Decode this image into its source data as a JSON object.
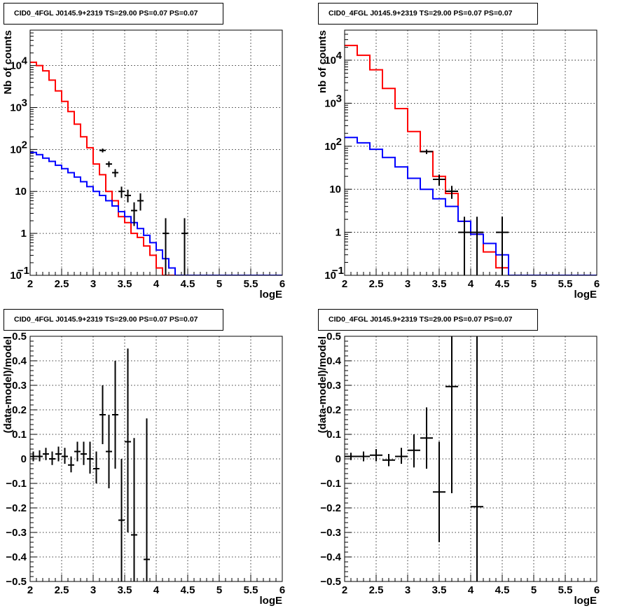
{
  "chart_data": [
    {
      "type": "line",
      "title": "CID0_4FGL J0145.9+2319 TS=29.00 PS=0.07 PS=0.07",
      "xlabel": "logE",
      "ylabel": "Nb of counts",
      "xlim": [
        2,
        6
      ],
      "ylim": [
        0.1,
        70000
      ],
      "yscale": "log",
      "grid": true,
      "x_ticks": [
        "2",
        "2.5",
        "3",
        "3.5",
        "4",
        "4.5",
        "5",
        "5.5",
        "6"
      ],
      "y_ticks": [
        {
          "v": 0.1,
          "label": "10",
          "sup": "−1"
        },
        {
          "v": 1,
          "label": "1",
          "sup": ""
        },
        {
          "v": 10,
          "label": "10",
          "sup": ""
        },
        {
          "v": 100,
          "label": "10",
          "sup": "2"
        },
        {
          "v": 1000,
          "label": "10",
          "sup": "3"
        },
        {
          "v": 10000,
          "label": "10",
          "sup": "4"
        }
      ],
      "series": [
        {
          "color": "#ff0000",
          "style": "step",
          "x0": 2.0,
          "bin": 0.1,
          "values": [
            12000,
            10000,
            7500,
            4500,
            2500,
            1400,
            800,
            400,
            200,
            110,
            45,
            25,
            10,
            6,
            2.5,
            1.8,
            1.0,
            0.8,
            0.5,
            0.3,
            0.15,
            0.1,
            0.1,
            0.1,
            0.1,
            0.1,
            0.1,
            0.1,
            0.1,
            0.1,
            0.1,
            0.1,
            0.1,
            0.1,
            0.1,
            0.1,
            0.1,
            0.1,
            0.1,
            0.1
          ]
        },
        {
          "color": "#0000ff",
          "style": "step",
          "x0": 2.0,
          "bin": 0.1,
          "values": [
            85,
            75,
            62,
            52,
            42,
            35,
            28,
            22,
            17,
            13,
            10,
            8,
            6,
            4.5,
            3.3,
            2.5,
            1.8,
            1.3,
            0.9,
            0.6,
            0.4,
            0.25,
            0.15,
            0.1,
            0.1,
            0.1,
            0.1,
            0.1,
            0.1,
            0.1,
            0.1,
            0.1,
            0.1,
            0.1,
            0.1,
            0.1,
            0.1,
            0.1,
            0.1,
            0.1
          ]
        },
        {
          "color": "#000000",
          "style": "errorbar",
          "xerr": 0.05,
          "points": [
            {
              "x": 3.15,
              "y": 95,
              "lo": 85,
              "hi": 105
            },
            {
              "x": 3.25,
              "y": 45,
              "lo": 38,
              "hi": 52
            },
            {
              "x": 3.35,
              "y": 28,
              "lo": 22,
              "hi": 34
            },
            {
              "x": 3.45,
              "y": 10,
              "lo": 7,
              "hi": 13
            },
            {
              "x": 3.55,
              "y": 8,
              "lo": 5.5,
              "hi": 11
            },
            {
              "x": 3.65,
              "y": 3.5,
              "lo": 1.5,
              "hi": 5.5
            },
            {
              "x": 3.75,
              "y": 6,
              "lo": 3.5,
              "hi": 9
            },
            {
              "x": 4.15,
              "y": 1,
              "lo": 0.1,
              "hi": 2.3
            },
            {
              "x": 4.45,
              "y": 1,
              "lo": 0.1,
              "hi": 2.3
            }
          ]
        }
      ]
    },
    {
      "type": "line",
      "title": "CID0_4FGL J0145.9+2319 TS=29.00 PS=0.07 PS=0.07",
      "xlabel": "logE",
      "ylabel": "nb of counts",
      "xlim": [
        2,
        6
      ],
      "ylim": [
        0.1,
        50000
      ],
      "yscale": "log",
      "grid": true,
      "x_ticks": [
        "2",
        "2.5",
        "3",
        "3.5",
        "4",
        "4.5",
        "5",
        "5.5",
        "6"
      ],
      "y_ticks": [
        {
          "v": 0.1,
          "label": "10",
          "sup": "−1"
        },
        {
          "v": 1,
          "label": "1",
          "sup": ""
        },
        {
          "v": 10,
          "label": "10",
          "sup": ""
        },
        {
          "v": 100,
          "label": "10",
          "sup": "2"
        },
        {
          "v": 1000,
          "label": "10",
          "sup": "3"
        },
        {
          "v": 10000,
          "label": "10",
          "sup": "4"
        }
      ],
      "series": [
        {
          "color": "#ff0000",
          "style": "step",
          "x0": 2.0,
          "bin": 0.2,
          "values": [
            22000,
            13000,
            6000,
            2200,
            750,
            220,
            75,
            20,
            8,
            1.8,
            0.9,
            0.35,
            0.15,
            0.1,
            0.1,
            0.1,
            0.1,
            0.1,
            0.1,
            0.1
          ]
        },
        {
          "color": "#0000ff",
          "style": "step",
          "x0": 2.0,
          "bin": 0.2,
          "values": [
            160,
            120,
            85,
            55,
            33,
            18,
            10,
            6,
            4,
            1.8,
            0.9,
            0.55,
            0.3,
            0.1,
            0.1,
            0.1,
            0.1,
            0.1,
            0.1,
            0.1
          ]
        },
        {
          "color": "#000000",
          "style": "errorbar",
          "xerr": 0.1,
          "points": [
            {
              "x": 3.3,
              "y": 75,
              "lo": 66,
              "hi": 84
            },
            {
              "x": 3.5,
              "y": 17,
              "lo": 12,
              "hi": 22
            },
            {
              "x": 3.7,
              "y": 9,
              "lo": 6,
              "hi": 12
            },
            {
              "x": 3.9,
              "y": 1,
              "lo": 0.1,
              "hi": 2.3
            },
            {
              "x": 4.1,
              "y": 1,
              "lo": 0.1,
              "hi": 2.3
            },
            {
              "x": 4.5,
              "y": 1,
              "lo": 0.1,
              "hi": 2.3
            }
          ]
        }
      ]
    },
    {
      "type": "scatter",
      "title": "CID0_4FGL J0145.9+2319 TS=29.00 PS=0.07 PS=0.07",
      "xlabel": "logE",
      "ylabel": "(data-model)/model",
      "xlim": [
        2,
        6
      ],
      "ylim": [
        -0.5,
        0.5
      ],
      "yscale": "linear",
      "grid": true,
      "x_ticks": [
        "2",
        "2.5",
        "3",
        "3.5",
        "4",
        "4.5",
        "5",
        "5.5",
        "6"
      ],
      "y_ticks": [
        {
          "v": -0.5,
          "label": "−0.5",
          "sup": ""
        },
        {
          "v": -0.4,
          "label": "−0.4",
          "sup": ""
        },
        {
          "v": -0.3,
          "label": "−0.3",
          "sup": ""
        },
        {
          "v": -0.2,
          "label": "−0.2",
          "sup": ""
        },
        {
          "v": -0.1,
          "label": "−0.1",
          "sup": ""
        },
        {
          "v": 0,
          "label": "0",
          "sup": ""
        },
        {
          "v": 0.1,
          "label": "0.1",
          "sup": ""
        },
        {
          "v": 0.2,
          "label": "0.2",
          "sup": ""
        },
        {
          "v": 0.3,
          "label": "0.3",
          "sup": ""
        },
        {
          "v": 0.4,
          "label": "0.4",
          "sup": ""
        },
        {
          "v": 0.5,
          "label": "0.5",
          "sup": ""
        }
      ],
      "series": [
        {
          "color": "#000000",
          "style": "errorbar",
          "xerr": 0.05,
          "points": [
            {
              "x": 2.05,
              "y": 0.01,
              "lo": -0.01,
              "hi": 0.03
            },
            {
              "x": 2.15,
              "y": 0.01,
              "lo": -0.01,
              "hi": 0.035
            },
            {
              "x": 2.25,
              "y": 0.02,
              "lo": -0.005,
              "hi": 0.045
            },
            {
              "x": 2.35,
              "y": 0.0,
              "lo": -0.025,
              "hi": 0.03
            },
            {
              "x": 2.45,
              "y": 0.02,
              "lo": -0.01,
              "hi": 0.05
            },
            {
              "x": 2.55,
              "y": 0.01,
              "lo": -0.02,
              "hi": 0.045
            },
            {
              "x": 2.65,
              "y": -0.025,
              "lo": -0.055,
              "hi": 0.01
            },
            {
              "x": 2.75,
              "y": 0.03,
              "lo": -0.01,
              "hi": 0.07
            },
            {
              "x": 2.85,
              "y": 0.02,
              "lo": -0.025,
              "hi": 0.07
            },
            {
              "x": 2.95,
              "y": 0.0,
              "lo": -0.06,
              "hi": 0.07
            },
            {
              "x": 3.05,
              "y": -0.04,
              "lo": -0.1,
              "hi": 0.03
            },
            {
              "x": 3.15,
              "y": 0.18,
              "lo": 0.06,
              "hi": 0.3
            },
            {
              "x": 3.25,
              "y": 0.03,
              "lo": -0.12,
              "hi": 0.18
            },
            {
              "x": 3.35,
              "y": 0.18,
              "lo": -0.04,
              "hi": 0.4
            },
            {
              "x": 3.45,
              "y": -0.25,
              "lo": -0.5,
              "hi": 0.0
            },
            {
              "x": 3.55,
              "y": 0.07,
              "lo": -0.3,
              "hi": 0.45
            },
            {
              "x": 3.65,
              "y": -0.31,
              "lo": -0.5,
              "hi": 0.085
            },
            {
              "x": 3.85,
              "y": -0.41,
              "lo": -0.5,
              "hi": 0.165
            }
          ]
        }
      ]
    },
    {
      "type": "scatter",
      "title": "CID0_4FGL J0145.9+2319 TS=29.00 PS=0.07 PS=0.07",
      "xlabel": "logE",
      "ylabel": "(data-model)/model",
      "xlim": [
        2,
        6
      ],
      "ylim": [
        -0.5,
        0.5
      ],
      "yscale": "linear",
      "grid": true,
      "x_ticks": [
        "2",
        "2.5",
        "3",
        "3.5",
        "4",
        "4.5",
        "5",
        "5.5",
        "6"
      ],
      "y_ticks": [
        {
          "v": -0.5,
          "label": "−0.5",
          "sup": ""
        },
        {
          "v": -0.4,
          "label": "−0.4",
          "sup": ""
        },
        {
          "v": -0.3,
          "label": "−0.3",
          "sup": ""
        },
        {
          "v": -0.2,
          "label": "−0.2",
          "sup": ""
        },
        {
          "v": -0.1,
          "label": "−0.1",
          "sup": ""
        },
        {
          "v": 0,
          "label": "0",
          "sup": ""
        },
        {
          "v": 0.1,
          "label": "0.1",
          "sup": ""
        },
        {
          "v": 0.2,
          "label": "0.2",
          "sup": ""
        },
        {
          "v": 0.3,
          "label": "0.3",
          "sup": ""
        },
        {
          "v": 0.4,
          "label": "0.4",
          "sup": ""
        },
        {
          "v": 0.5,
          "label": "0.5",
          "sup": ""
        }
      ],
      "series": [
        {
          "color": "#000000",
          "style": "errorbar",
          "xerr": 0.1,
          "points": [
            {
              "x": 2.1,
              "y": 0.01,
              "lo": -0.005,
              "hi": 0.025
            },
            {
              "x": 2.3,
              "y": 0.01,
              "lo": -0.01,
              "hi": 0.03
            },
            {
              "x": 2.5,
              "y": 0.015,
              "lo": -0.01,
              "hi": 0.04
            },
            {
              "x": 2.7,
              "y": -0.005,
              "lo": -0.03,
              "hi": 0.02
            },
            {
              "x": 2.9,
              "y": 0.01,
              "lo": -0.02,
              "hi": 0.045
            },
            {
              "x": 3.1,
              "y": 0.035,
              "lo": -0.035,
              "hi": 0.1
            },
            {
              "x": 3.3,
              "y": 0.085,
              "lo": -0.04,
              "hi": 0.21
            },
            {
              "x": 3.5,
              "y": -0.135,
              "lo": -0.34,
              "hi": 0.07
            },
            {
              "x": 3.7,
              "y": 0.295,
              "lo": -0.14,
              "hi": 0.5
            },
            {
              "x": 4.1,
              "y": -0.195,
              "lo": -0.5,
              "hi": 0.5
            }
          ]
        }
      ]
    }
  ]
}
